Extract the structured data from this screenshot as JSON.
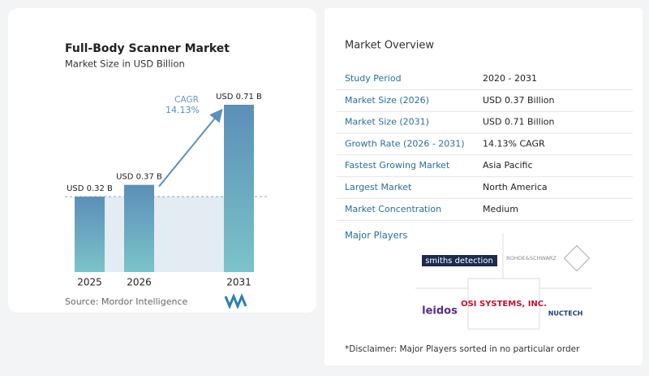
{
  "chart_data": {
    "type": "bar",
    "title": "Full-Body Scanner Market",
    "subtitle": "Market Size in USD Billion",
    "categories": [
      "2025",
      "2026",
      "2031"
    ],
    "values": [
      0.32,
      0.37,
      0.71
    ],
    "value_labels": [
      "USD 0.32 B",
      "USD 0.37 B",
      "USD 0.71 B"
    ],
    "cagr_label": "CAGR",
    "cagr_value": "14.13%",
    "source": "Source: Mordor Intelligence"
  },
  "overview": {
    "title": "Market Overview",
    "rows": [
      [
        "Study Period",
        "2020 - 2031"
      ],
      [
        "Market Size (2026)",
        "USD 0.37 Billion"
      ],
      [
        "Market Size (2031)",
        "USD 0.71 Billion"
      ],
      [
        "Growth Rate (2026 - 2031)",
        "14.13% CAGR"
      ],
      [
        "Fastest Growing Market",
        "Asia Pacific"
      ],
      [
        "Largest Market",
        "North America"
      ],
      [
        "Market Concentration",
        "Medium"
      ]
    ],
    "players_title": "Major Players",
    "players": [
      "smiths detection",
      "ROHDE&SCHWARZ",
      "leidos",
      "OSI SYSTEMS, INC.",
      "NUCTECH"
    ],
    "disclaimer": "*Disclaimer: Major Players sorted in no particular order"
  }
}
